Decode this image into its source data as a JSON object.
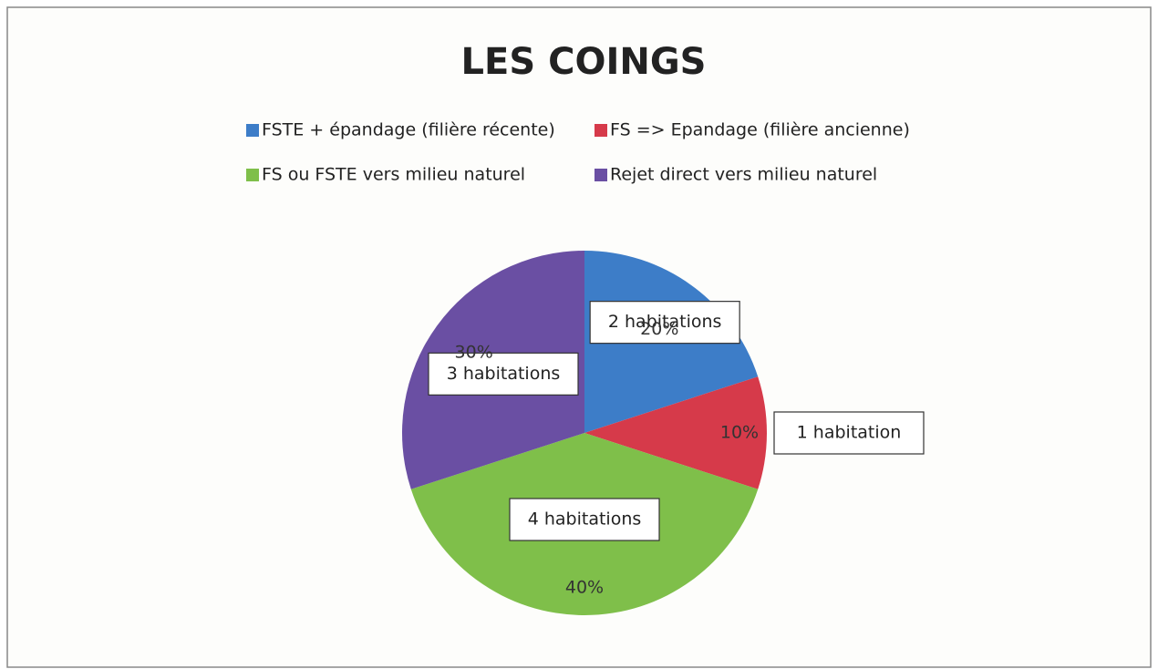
{
  "chart_data": {
    "type": "pie",
    "title": "LES COINGS",
    "categories": [
      "FSTE + épandage  (filière récente)",
      "FS => Epandage  (filière ancienne)",
      "FS ou FSTE vers milieu naturel",
      "Rejet direct vers  milieu naturel"
    ],
    "values": [
      20,
      10,
      40,
      30
    ],
    "value_labels": [
      "20%",
      "10%",
      "40%",
      "30%"
    ],
    "annotations": [
      "2 habitations",
      "1 habitation",
      "4 habitations",
      "3 habitations"
    ],
    "colors": [
      "#3d7dc8",
      "#d63a4a",
      "#7fbf4a",
      "#6a4fa3"
    ],
    "legend": "top"
  }
}
